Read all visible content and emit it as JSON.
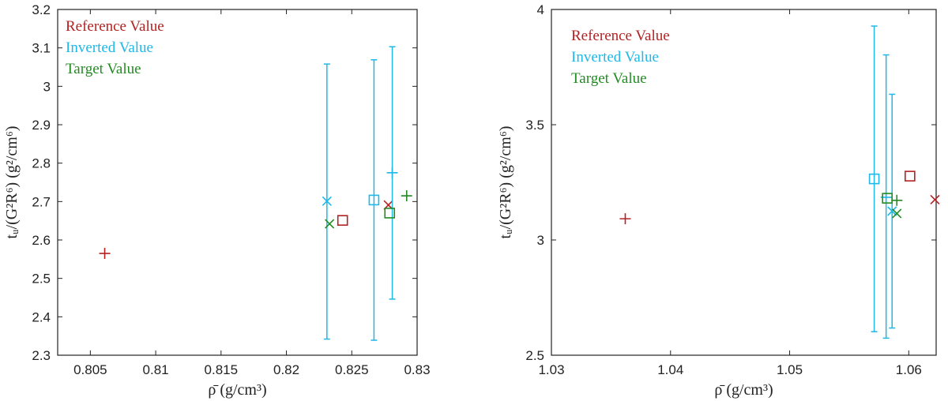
{
  "colors": {
    "reference": "#b22222",
    "inverted": "#1fb8e8",
    "target": "#228b22",
    "axis": "#222222"
  },
  "chart_data": [
    {
      "type": "scatter",
      "xlabel": "ρ̄ (g/cm³)",
      "ylabel": "tᵤ/(G²R⁶) (g²/cm⁶)",
      "xlim": [
        0.8025,
        0.83
      ],
      "ylim": [
        2.3,
        3.2
      ],
      "xticks": [
        0.805,
        0.81,
        0.815,
        0.82,
        0.825,
        0.83
      ],
      "xtick_labels": [
        "0.805",
        "0.81",
        "0.815",
        "0.82",
        "0.825",
        "0.83"
      ],
      "yticks": [
        2.3,
        2.4,
        2.5,
        2.6,
        2.7,
        2.8,
        2.9,
        3.0,
        3.1,
        3.2
      ],
      "ytick_labels": [
        "2.3",
        "2.4",
        "2.5",
        "2.6",
        "2.7",
        "2.8",
        "2.9",
        "3",
        "3.1",
        "3.2"
      ],
      "legend": [
        "Reference Value",
        "Inverted Value",
        "Target Value"
      ],
      "legend_position": "top-left",
      "points": [
        {
          "series": "reference",
          "marker": "plus",
          "x": 0.8061,
          "y": 2.565
        },
        {
          "series": "reference",
          "marker": "square",
          "x": 0.8243,
          "y": 2.651
        },
        {
          "series": "reference",
          "marker": "cross",
          "x": 0.8278,
          "y": 2.691
        },
        {
          "series": "inverted",
          "marker": "cross",
          "x": 0.8231,
          "y": 2.701,
          "err_low": 2.342,
          "err_high": 3.058
        },
        {
          "series": "inverted",
          "marker": "square",
          "x": 0.8267,
          "y": 2.704,
          "err_low": 2.339,
          "err_high": 3.069
        },
        {
          "series": "inverted",
          "marker": "plus",
          "x": 0.8281,
          "y": 2.775,
          "err_low": 2.446,
          "err_high": 3.103
        },
        {
          "series": "target",
          "marker": "cross",
          "x": 0.8233,
          "y": 2.642
        },
        {
          "series": "target",
          "marker": "square",
          "x": 0.8279,
          "y": 2.67
        },
        {
          "series": "target",
          "marker": "plus",
          "x": 0.8292,
          "y": 2.715
        }
      ]
    },
    {
      "type": "scatter",
      "xlabel": "ρ̄ (g/cm³)",
      "ylabel": "tᵤ/(G²R⁶) (g²/cm⁶)",
      "xlim": [
        1.03,
        1.0623
      ],
      "ylim": [
        2.5,
        4.0
      ],
      "xticks": [
        1.03,
        1.04,
        1.05,
        1.06
      ],
      "xtick_labels": [
        "1.03",
        "1.04",
        "1.05",
        "1.06"
      ],
      "yticks": [
        2.5,
        3.0,
        3.5,
        4.0
      ],
      "ytick_labels": [
        "2.5",
        "3",
        "3.5",
        "4"
      ],
      "legend": [
        "Reference Value",
        "Inverted Value",
        "Target Value"
      ],
      "legend_position": "top-left",
      "points": [
        {
          "series": "reference",
          "marker": "plus",
          "x": 1.0362,
          "y": 3.092
        },
        {
          "series": "reference",
          "marker": "square",
          "x": 1.0601,
          "y": 3.277
        },
        {
          "series": "reference",
          "marker": "cross",
          "x": 1.0622,
          "y": 3.175
        },
        {
          "series": "inverted",
          "marker": "square",
          "x": 1.0571,
          "y": 3.265,
          "err_low": 2.602,
          "err_high": 3.928
        },
        {
          "series": "inverted",
          "marker": "plus",
          "x": 1.0581,
          "y": 3.185,
          "err_low": 2.574,
          "err_high": 3.803
        },
        {
          "series": "inverted",
          "marker": "cross",
          "x": 1.0586,
          "y": 3.125,
          "err_low": 2.618,
          "err_high": 3.632
        },
        {
          "series": "target",
          "marker": "square",
          "x": 1.0582,
          "y": 3.181
        },
        {
          "series": "target",
          "marker": "plus",
          "x": 1.059,
          "y": 3.172
        },
        {
          "series": "target",
          "marker": "cross",
          "x": 1.059,
          "y": 3.115
        }
      ]
    }
  ]
}
